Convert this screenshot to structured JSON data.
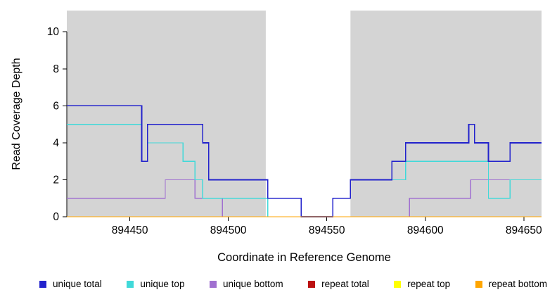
{
  "chart_data": {
    "type": "line",
    "step": true,
    "title": "",
    "xlabel": "Coordinate in Reference Genome",
    "ylabel": "Read Coverage Depth",
    "xlim": [
      894418,
      894659
    ],
    "ylim": [
      0,
      11.15
    ],
    "xticks": [
      894450,
      894500,
      894550,
      894600,
      894650
    ],
    "yticks": [
      0,
      2,
      4,
      6,
      8,
      10
    ],
    "grid": false,
    "legend_position": "bottom",
    "shade_color": "#d4d4d4",
    "shaded_regions": [
      [
        894418,
        894519
      ],
      [
        894562,
        894659
      ]
    ],
    "axis_color": "#000000",
    "series": [
      {
        "name": "repeat total",
        "color": "#bb1111",
        "width": 1.3,
        "points": [
          [
            894418,
            0
          ],
          [
            894659,
            0
          ]
        ]
      },
      {
        "name": "repeat top",
        "color": "#ffff00",
        "width": 1.3,
        "points": [
          [
            894418,
            0
          ],
          [
            894659,
            0
          ]
        ]
      },
      {
        "name": "unique bottom",
        "color": "#a070d0",
        "width": 1.3,
        "points": [
          [
            894418,
            1
          ],
          [
            894468,
            1
          ],
          [
            894468,
            2
          ],
          [
            894483,
            2
          ],
          [
            894483,
            1
          ],
          [
            894497,
            1
          ],
          [
            894497,
            0
          ],
          [
            894592,
            0
          ],
          [
            894592,
            1
          ],
          [
            894623,
            1
          ],
          [
            894623,
            2
          ],
          [
            894659,
            2
          ]
        ]
      },
      {
        "name": "unique top",
        "color": "#40d9d9",
        "width": 1.3,
        "points": [
          [
            894418,
            5
          ],
          [
            894456,
            5
          ],
          [
            894456,
            3
          ],
          [
            894459,
            3
          ],
          [
            894459,
            4
          ],
          [
            894477,
            4
          ],
          [
            894477,
            3
          ],
          [
            894483,
            3
          ],
          [
            894483,
            2
          ],
          [
            894487,
            2
          ],
          [
            894487,
            1
          ],
          [
            894520,
            1
          ],
          [
            894520,
            0
          ],
          [
            894553,
            0
          ],
          [
            894553,
            1
          ],
          [
            894562,
            1
          ],
          [
            894562,
            2
          ],
          [
            894590,
            2
          ],
          [
            894590,
            3
          ],
          [
            894632,
            3
          ],
          [
            894632,
            1
          ],
          [
            894643,
            1
          ],
          [
            894643,
            2
          ],
          [
            894659,
            2
          ]
        ]
      },
      {
        "name": "unique total",
        "color": "#2222cc",
        "width": 1.7,
        "points": [
          [
            894418,
            6
          ],
          [
            894456,
            6
          ],
          [
            894456,
            3
          ],
          [
            894459,
            3
          ],
          [
            894459,
            5
          ],
          [
            894487,
            5
          ],
          [
            894487,
            4
          ],
          [
            894490,
            4
          ],
          [
            894490,
            2
          ],
          [
            894520,
            2
          ],
          [
            894520,
            1
          ],
          [
            894537,
            1
          ],
          [
            894537,
            0
          ],
          [
            894553,
            0
          ],
          [
            894553,
            1
          ],
          [
            894562,
            1
          ],
          [
            894562,
            2
          ],
          [
            894583,
            2
          ],
          [
            894583,
            3
          ],
          [
            894590,
            3
          ],
          [
            894590,
            4
          ],
          [
            894622,
            4
          ],
          [
            894622,
            5
          ],
          [
            894625,
            5
          ],
          [
            894625,
            4
          ],
          [
            894632,
            4
          ],
          [
            894632,
            3
          ],
          [
            894643,
            3
          ],
          [
            894643,
            4
          ],
          [
            894659,
            4
          ]
        ]
      },
      {
        "name": "repeat bottom",
        "color": "#ffa500",
        "width": 1.3,
        "points": [
          [
            894418,
            0
          ],
          [
            894659,
            0
          ]
        ]
      }
    ],
    "legend": [
      {
        "label": "unique total",
        "color": "#2222cc"
      },
      {
        "label": "unique top",
        "color": "#40d9d9"
      },
      {
        "label": "unique bottom",
        "color": "#a070d0"
      },
      {
        "label": "repeat total",
        "color": "#bb1111"
      },
      {
        "label": "repeat top",
        "color": "#ffff00"
      },
      {
        "label": "repeat bottom",
        "color": "#ffa500"
      }
    ]
  }
}
